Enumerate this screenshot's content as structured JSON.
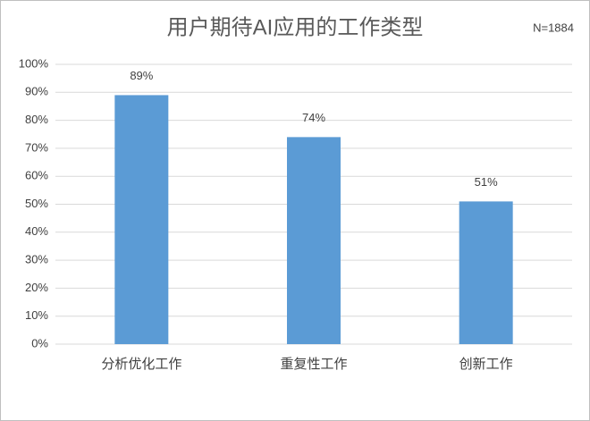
{
  "chart_data": {
    "type": "bar",
    "title": "用户期待AI应用的工作类型",
    "annotation": "N=1884",
    "categories": [
      "分析优化工作",
      "重复性工作",
      "创新工作"
    ],
    "values": [
      89,
      74,
      51
    ],
    "value_labels": [
      "89%",
      "74%",
      "51%"
    ],
    "color": "#5b9bd5",
    "ylim": [
      0,
      100
    ],
    "yticks": [
      {
        "value": 0,
        "label": "0%"
      },
      {
        "value": 10,
        "label": "10%"
      },
      {
        "value": 20,
        "label": "20%"
      },
      {
        "value": 30,
        "label": "30%"
      },
      {
        "value": 40,
        "label": "40%"
      },
      {
        "value": 50,
        "label": "50%"
      },
      {
        "value": 60,
        "label": "60%"
      },
      {
        "value": 70,
        "label": "70%"
      },
      {
        "value": 80,
        "label": "80%"
      },
      {
        "value": 90,
        "label": "90%"
      },
      {
        "value": 100,
        "label": "100%"
      }
    ],
    "grid": true
  }
}
